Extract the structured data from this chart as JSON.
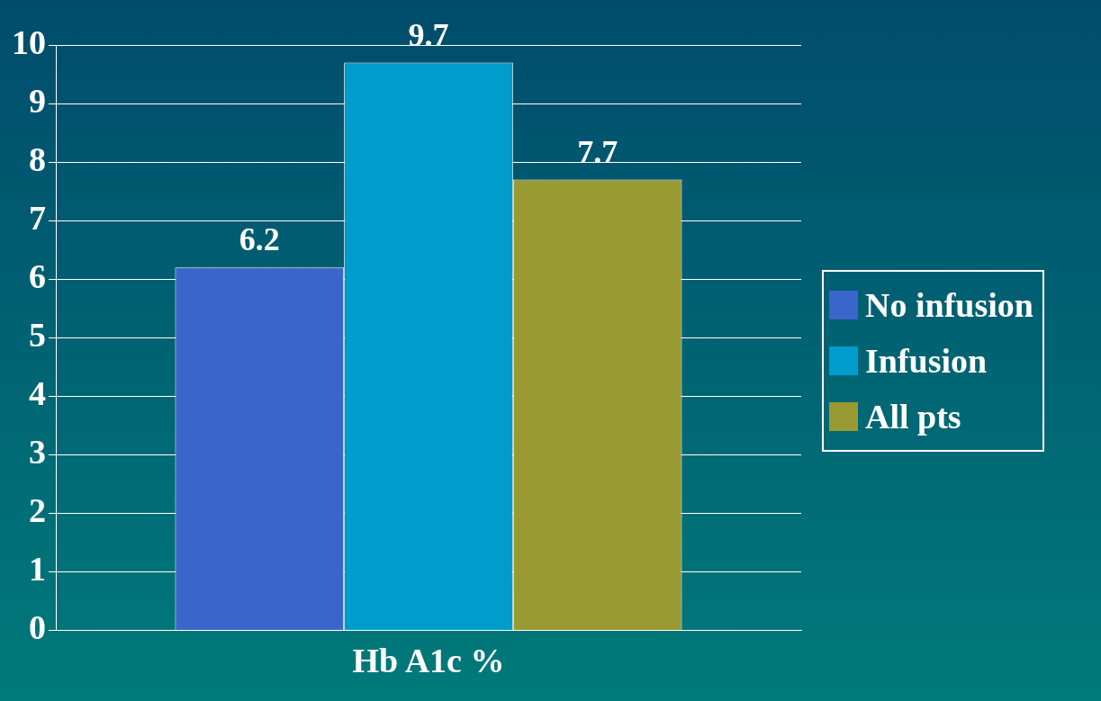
{
  "chart_data": {
    "type": "bar",
    "categories": [
      "Hb A1c %"
    ],
    "series": [
      {
        "name": "No infusion",
        "color": "#3a66cc",
        "values": [
          6.2
        ]
      },
      {
        "name": "Infusion",
        "color": "#009ccc",
        "values": [
          9.7
        ]
      },
      {
        "name": "All pts",
        "color": "#9a9a33",
        "values": [
          7.7
        ]
      }
    ],
    "ylim": [
      0,
      10
    ],
    "yticks": [
      0,
      1,
      2,
      3,
      4,
      5,
      6,
      7,
      8,
      9,
      10
    ],
    "grid": "y",
    "legend": "right",
    "data_labels": true
  }
}
